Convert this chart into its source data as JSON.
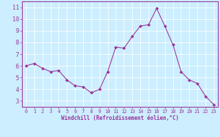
{
  "x": [
    0,
    1,
    2,
    3,
    4,
    5,
    6,
    7,
    8,
    9,
    10,
    11,
    12,
    13,
    14,
    15,
    16,
    17,
    18,
    19,
    20,
    21,
    22,
    23
  ],
  "y": [
    6.0,
    6.2,
    5.8,
    5.5,
    5.6,
    4.8,
    4.3,
    4.2,
    3.7,
    4.0,
    5.5,
    7.6,
    7.5,
    8.5,
    9.4,
    9.5,
    10.9,
    9.4,
    7.8,
    5.5,
    4.8,
    4.5,
    3.4,
    2.7
  ],
  "line_color": "#993399",
  "marker": "D",
  "marker_size": 2,
  "bg_color": "#cceeff",
  "grid_color": "#ffffff",
  "xlabel": "Windchill (Refroidissement éolien,°C)",
  "xlabel_color": "#993399",
  "tick_color": "#993399",
  "ylim": [
    2.5,
    11.5
  ],
  "xlim": [
    -0.5,
    23.5
  ],
  "yticks": [
    3,
    4,
    5,
    6,
    7,
    8,
    9,
    10,
    11
  ],
  "xticks": [
    0,
    1,
    2,
    3,
    4,
    5,
    6,
    7,
    8,
    9,
    10,
    11,
    12,
    13,
    14,
    15,
    16,
    17,
    18,
    19,
    20,
    21,
    22,
    23
  ],
  "spine_color": "#993399"
}
